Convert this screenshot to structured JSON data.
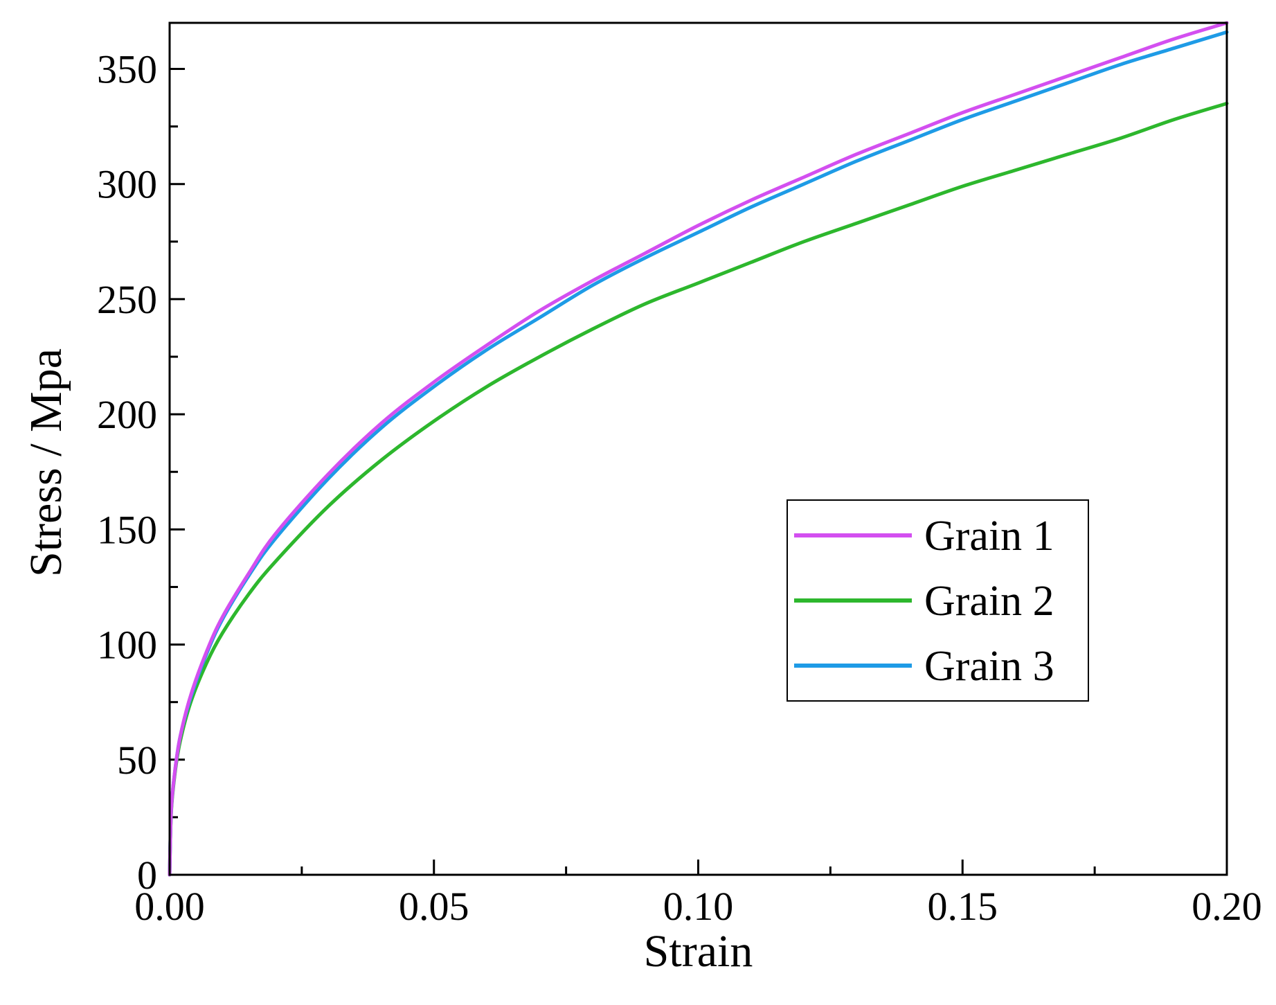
{
  "chart_data": {
    "type": "line",
    "xlabel": "Strain",
    "ylabel": "Stress / Mpa",
    "xlim": [
      0,
      0.2
    ],
    "ylim": [
      0,
      370
    ],
    "xticks": [
      0,
      0.05,
      0.1,
      0.15,
      0.2
    ],
    "xtick_labels": [
      "0.00",
      "0.05",
      "0.10",
      "0.15",
      "0.20"
    ],
    "yticks": [
      0,
      50,
      100,
      150,
      200,
      250,
      300,
      350
    ],
    "ytick_labels": [
      "0",
      "50",
      "100",
      "150",
      "200",
      "250",
      "300",
      "350"
    ],
    "legend_position": "center-right",
    "grid": false,
    "series": [
      {
        "name": "Grain 1",
        "color": "#d34ff0",
        "x": [
          0,
          0.0003,
          0.001,
          0.002,
          0.004,
          0.007,
          0.01,
          0.015,
          0.02,
          0.03,
          0.04,
          0.05,
          0.06,
          0.07,
          0.08,
          0.09,
          0.1,
          0.11,
          0.12,
          0.13,
          0.14,
          0.15,
          0.16,
          0.17,
          0.18,
          0.19,
          0.2
        ],
        "y": [
          0,
          28,
          45,
          60,
          78,
          97,
          112,
          131,
          148,
          174,
          196,
          214,
          230,
          245,
          258,
          270,
          282,
          293,
          303,
          313,
          322,
          331,
          339,
          347,
          355,
          363,
          370
        ]
      },
      {
        "name": "Grain 2",
        "color": "#2db72d",
        "x": [
          0,
          0.0003,
          0.001,
          0.002,
          0.004,
          0.007,
          0.01,
          0.015,
          0.02,
          0.03,
          0.04,
          0.05,
          0.06,
          0.07,
          0.08,
          0.09,
          0.1,
          0.11,
          0.12,
          0.13,
          0.14,
          0.15,
          0.16,
          0.17,
          0.18,
          0.19,
          0.2
        ],
        "y": [
          0,
          27,
          44,
          58,
          75,
          92,
          105,
          122,
          136,
          160,
          180,
          197,
          212,
          225,
          237,
          248,
          257,
          266,
          275,
          283,
          291,
          299,
          306,
          313,
          320,
          328,
          335
        ]
      },
      {
        "name": "Grain 3",
        "color": "#1e9be6",
        "x": [
          0,
          0.0003,
          0.001,
          0.002,
          0.004,
          0.007,
          0.01,
          0.015,
          0.02,
          0.03,
          0.04,
          0.05,
          0.06,
          0.07,
          0.08,
          0.09,
          0.1,
          0.11,
          0.12,
          0.13,
          0.14,
          0.15,
          0.16,
          0.17,
          0.18,
          0.19,
          0.2
        ],
        "y": [
          0,
          28,
          45,
          60,
          77,
          96,
          111,
          130,
          146,
          172,
          194,
          212,
          228,
          242,
          256,
          268,
          279,
          290,
          300,
          310,
          319,
          328,
          336,
          344,
          352,
          359,
          366
        ]
      }
    ]
  }
}
